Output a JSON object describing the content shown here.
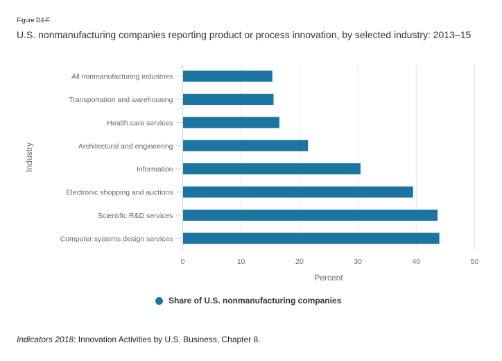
{
  "figure_label": "Figure D4-F",
  "chart_data": {
    "type": "bar",
    "orientation": "horizontal",
    "title": "U.S. nonmanufacturing companies reporting product or process innovation, by selected industry: 2013–15",
    "categories": [
      "All nonmanufacturing industries",
      "Transportation and warehousing",
      "Health care services",
      "Architectural and engineering",
      "Information",
      "Electronic shopping and auctions",
      "Scientific R&D services",
      "Computer systems design services"
    ],
    "series": [
      {
        "name": "Share of U.S. nonmanufacturing companies",
        "color": "#1b75a0",
        "values": [
          15.3,
          15.5,
          16.5,
          21.4,
          30.4,
          39.4,
          43.6,
          43.9
        ]
      }
    ],
    "xlabel": "Percent",
    "ylabel": "Industry",
    "xlim": [
      0,
      50
    ],
    "xticks": [
      "0",
      "10",
      "20",
      "30",
      "40",
      "50"
    ],
    "grid": true,
    "legend_position": "bottom-center"
  },
  "legend": {
    "label": "Share of U.S. nonmanufacturing companies",
    "color": "#1b75a0"
  },
  "source": {
    "italic": "Indicators 2018:",
    "text": " Innovation Activities by U.S. Business, Chapter 8."
  }
}
